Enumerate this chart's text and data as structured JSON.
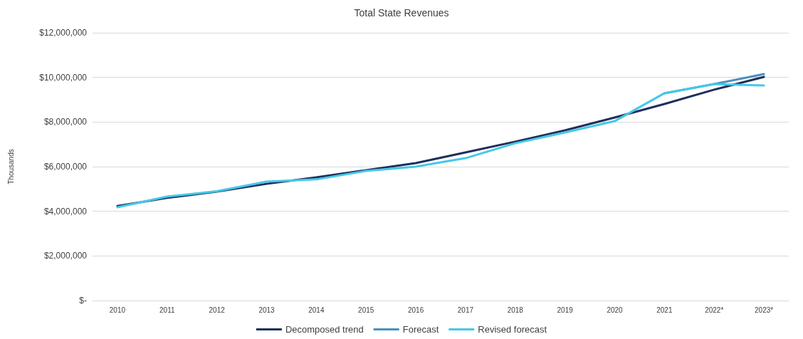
{
  "chart_data": {
    "type": "line",
    "title": "Total State Revenues",
    "ylabel": "Thousands",
    "categories": [
      "2010",
      "2011",
      "2012",
      "2013",
      "2014",
      "2015",
      "2016",
      "2017",
      "2018",
      "2019",
      "2020",
      "2021",
      "2022*",
      "2023*"
    ],
    "series": [
      {
        "name": "Decomposed trend",
        "color": "#1f2f5c",
        "values": [
          4240000,
          4600000,
          4880000,
          5230000,
          5520000,
          5840000,
          6160000,
          6640000,
          7120000,
          7630000,
          8200000,
          8810000,
          9450000,
          10020000
        ]
      },
      {
        "name": "Forecast",
        "color": "#4a8fc0",
        "values": [
          null,
          null,
          null,
          null,
          null,
          null,
          null,
          null,
          null,
          null,
          null,
          9290000,
          9700000,
          10150000
        ]
      },
      {
        "name": "Revised forecast",
        "color": "#45c8e8",
        "values": [
          4180000,
          4660000,
          4900000,
          5330000,
          5430000,
          5810000,
          6000000,
          6380000,
          7050000,
          7530000,
          8040000,
          9290000,
          9700000,
          9640000
        ]
      }
    ],
    "ylim": [
      0,
      12000000
    ],
    "yticks": [
      {
        "value": 0,
        "label": "$-"
      },
      {
        "value": 2000000,
        "label": "$2,000,000"
      },
      {
        "value": 4000000,
        "label": "$4,000,000"
      },
      {
        "value": 6000000,
        "label": "$6,000,000"
      },
      {
        "value": 8000000,
        "label": "$8,000,000"
      },
      {
        "value": 10000000,
        "label": "$10,000,000"
      },
      {
        "value": 12000000,
        "label": "$12,000,000"
      }
    ],
    "grid": "y",
    "legend": "bottom",
    "marker": "none",
    "line_style": "solid"
  }
}
